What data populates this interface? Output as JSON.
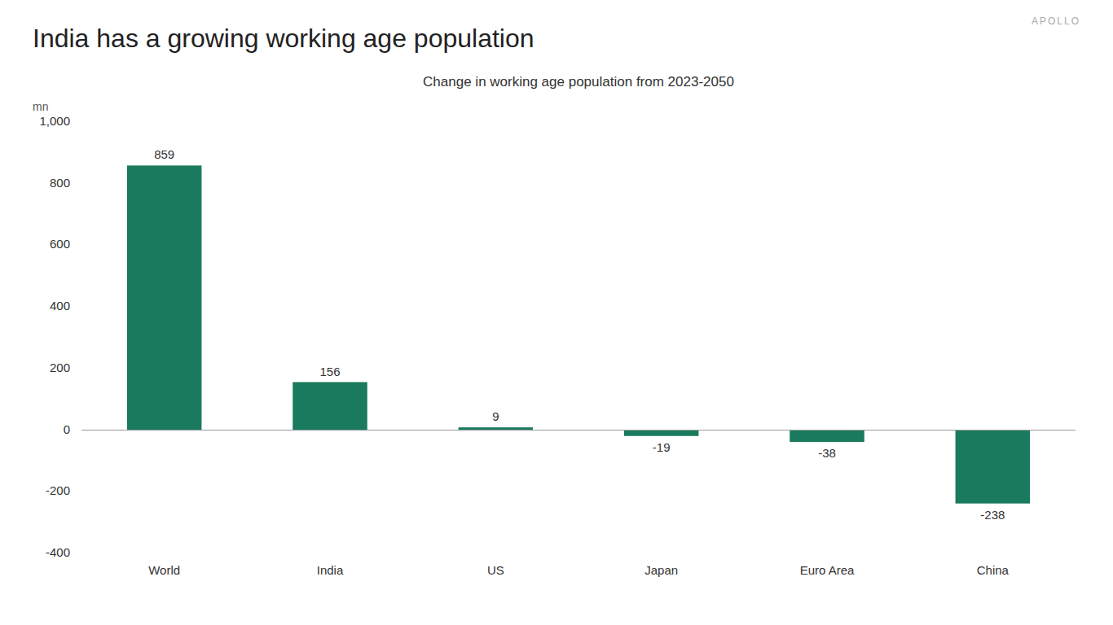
{
  "chart_data": {
    "type": "bar",
    "title": "India has a growing working age population",
    "subtitle": "Change in working age population from 2023-2050",
    "ylabel": "mn",
    "annotations": [
      "APOLLO"
    ],
    "categories": [
      "World",
      "India",
      "US",
      "Japan",
      "Euro Area",
      "China"
    ],
    "values": [
      859,
      156,
      9,
      -19,
      -38,
      -238
    ],
    "color": "#1a7a5e",
    "ylim": [
      -400,
      1000
    ],
    "yticks": [
      -400,
      -200,
      0,
      200,
      400,
      600,
      800,
      {
        "value": 1000,
        "label": "1,000"
      }
    ],
    "grid": false,
    "data_labels": true
  }
}
